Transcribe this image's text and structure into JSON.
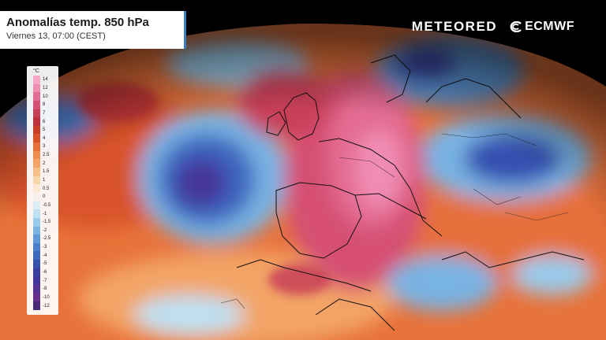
{
  "header": {
    "title": "Anomalías temp. 850 hPa",
    "subtitle": "Viernes 13, 07:00 (CEST)"
  },
  "brand": {
    "logo_left": "METEORED",
    "logo_right": "ECMWF"
  },
  "legend": {
    "unit": "°C",
    "labels": [
      "14",
      "12",
      "10",
      "8",
      "7",
      "6",
      "5",
      "4",
      "3",
      "2.5",
      "2",
      "1.5",
      "1",
      "0.5",
      "0",
      "-0.5",
      "-1",
      "-1.5",
      "-2",
      "-2.5",
      "-3",
      "-4",
      "-5",
      "-6",
      "-7",
      "-8",
      "-10",
      "-12"
    ],
    "colors": [
      "#f7a7c8",
      "#f08db3",
      "#e46c93",
      "#d65073",
      "#c84058",
      "#c0303b",
      "#cb3b26",
      "#d9522a",
      "#e6703a",
      "#ee8b4e",
      "#f3a466",
      "#f7bf88",
      "#fad6ad",
      "#fce8d2",
      "#f5f1ea",
      "#dbeef6",
      "#bde0f2",
      "#99cbeb",
      "#78b3e3",
      "#5d99d9",
      "#4a7fcd",
      "#3d66bf",
      "#3650b0",
      "#3a3ea3",
      "#44349b",
      "#573193",
      "#6a2f8c",
      "#4a2a78"
    ]
  },
  "colors": {
    "accent": "#3a7fc1",
    "warm": "#d9522a",
    "hot": "#e46c93",
    "cold": "#3650b0",
    "very_cold": "#44349b"
  }
}
